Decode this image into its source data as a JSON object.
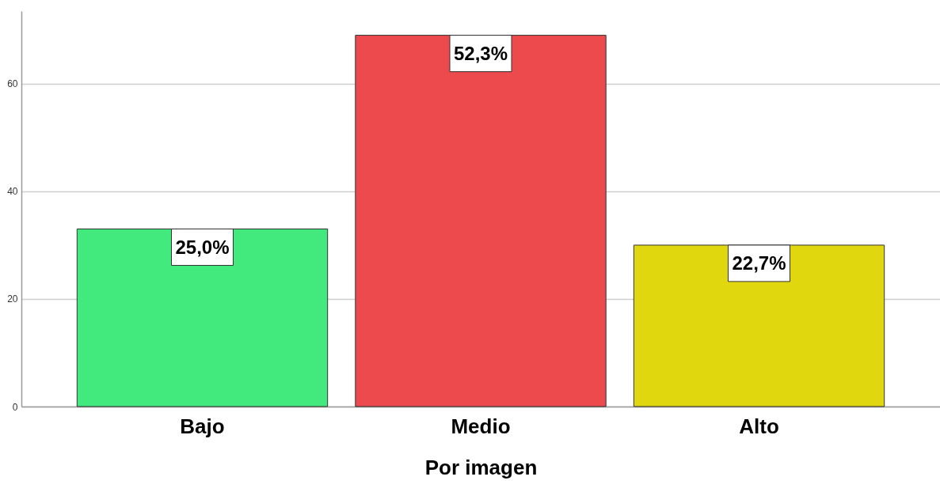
{
  "chart_data": {
    "type": "bar",
    "xlabel": "Por imagen",
    "categories": [
      "Bajo",
      "Medio",
      "Alto"
    ],
    "values": [
      33,
      69,
      30
    ],
    "colors": [
      "#42e97d",
      "#ec4a4d",
      "#e1d70f"
    ],
    "annotations": [
      {
        "text": "25,0%",
        "x": "Bajo",
        "y": 33
      },
      {
        "text": "52,3%",
        "x": "Medio",
        "y": 69
      },
      {
        "text": "22,7%",
        "x": "Alto",
        "y": 30
      }
    ],
    "ylim": [
      0,
      73.5
    ],
    "yticks": [
      0,
      20,
      40,
      60
    ],
    "grid": "y"
  }
}
